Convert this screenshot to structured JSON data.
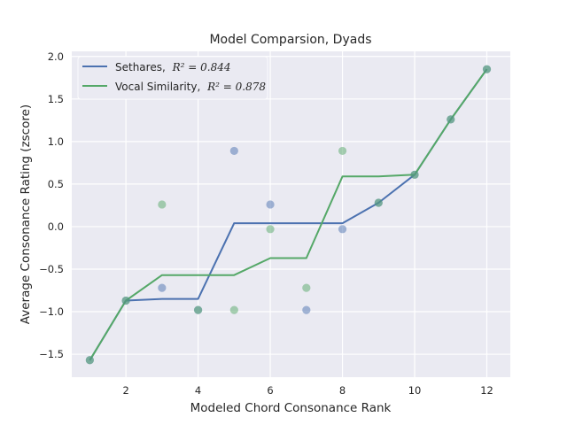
{
  "chart_data": {
    "type": "line",
    "title": "Model Comparsion, Dyads",
    "xlabel": "Modeled Chord Consonance Rank",
    "ylabel": "Average Consonance Rating (zscore)",
    "xlim": [
      0.5,
      12.65
    ],
    "ylim": [
      -1.77,
      2.06
    ],
    "x_ticks": [
      2,
      4,
      6,
      8,
      10,
      12
    ],
    "y_ticks": [
      -1.5,
      -1.0,
      -0.5,
      0.0,
      0.5,
      1.0,
      1.5,
      2.0
    ],
    "x_tick_labels": [
      "2",
      "4",
      "6",
      "8",
      "10",
      "12"
    ],
    "y_tick_labels": [
      "−1.5",
      "−1.0",
      "−0.5",
      "0.0",
      "0.5",
      "1.0",
      "1.5",
      "2.0"
    ],
    "grid": true,
    "legend_position": "top-left",
    "series": [
      {
        "name": "Sethares",
        "legend_label": "Sethares,",
        "legend_math": "R² = 0.844",
        "color": "#4c72b0",
        "line": {
          "x": [
            1,
            2,
            3,
            4,
            5,
            6,
            7,
            8,
            9,
            10,
            11,
            12
          ],
          "y": [
            -1.57,
            -0.87,
            -0.85,
            -0.85,
            0.04,
            0.04,
            0.04,
            0.04,
            0.28,
            0.61,
            1.26,
            1.85
          ]
        },
        "points": {
          "x": [
            1,
            2,
            3,
            4,
            5,
            6,
            7,
            8,
            9,
            10,
            11,
            12
          ],
          "y": [
            -1.57,
            -0.87,
            -0.72,
            -0.98,
            0.89,
            0.26,
            -0.98,
            -0.03,
            0.28,
            0.61,
            1.26,
            1.85
          ]
        }
      },
      {
        "name": "Vocal Similarity",
        "legend_label": "Vocal Similarity,",
        "legend_math": "R² = 0.878",
        "color": "#55a868",
        "line": {
          "x": [
            1,
            2,
            3,
            4,
            5,
            6,
            7,
            8,
            9,
            10,
            11,
            12
          ],
          "y": [
            -1.57,
            -0.87,
            -0.57,
            -0.57,
            -0.57,
            -0.37,
            -0.37,
            0.59,
            0.59,
            0.61,
            1.26,
            1.85
          ]
        },
        "points": {
          "x": [
            1,
            2,
            3,
            4,
            5,
            6,
            7,
            8,
            9,
            10,
            11,
            12
          ],
          "y": [
            -1.57,
            -0.87,
            0.26,
            -0.98,
            -0.98,
            -0.03,
            -0.72,
            0.89,
            0.28,
            0.61,
            1.26,
            1.85
          ]
        }
      }
    ]
  }
}
